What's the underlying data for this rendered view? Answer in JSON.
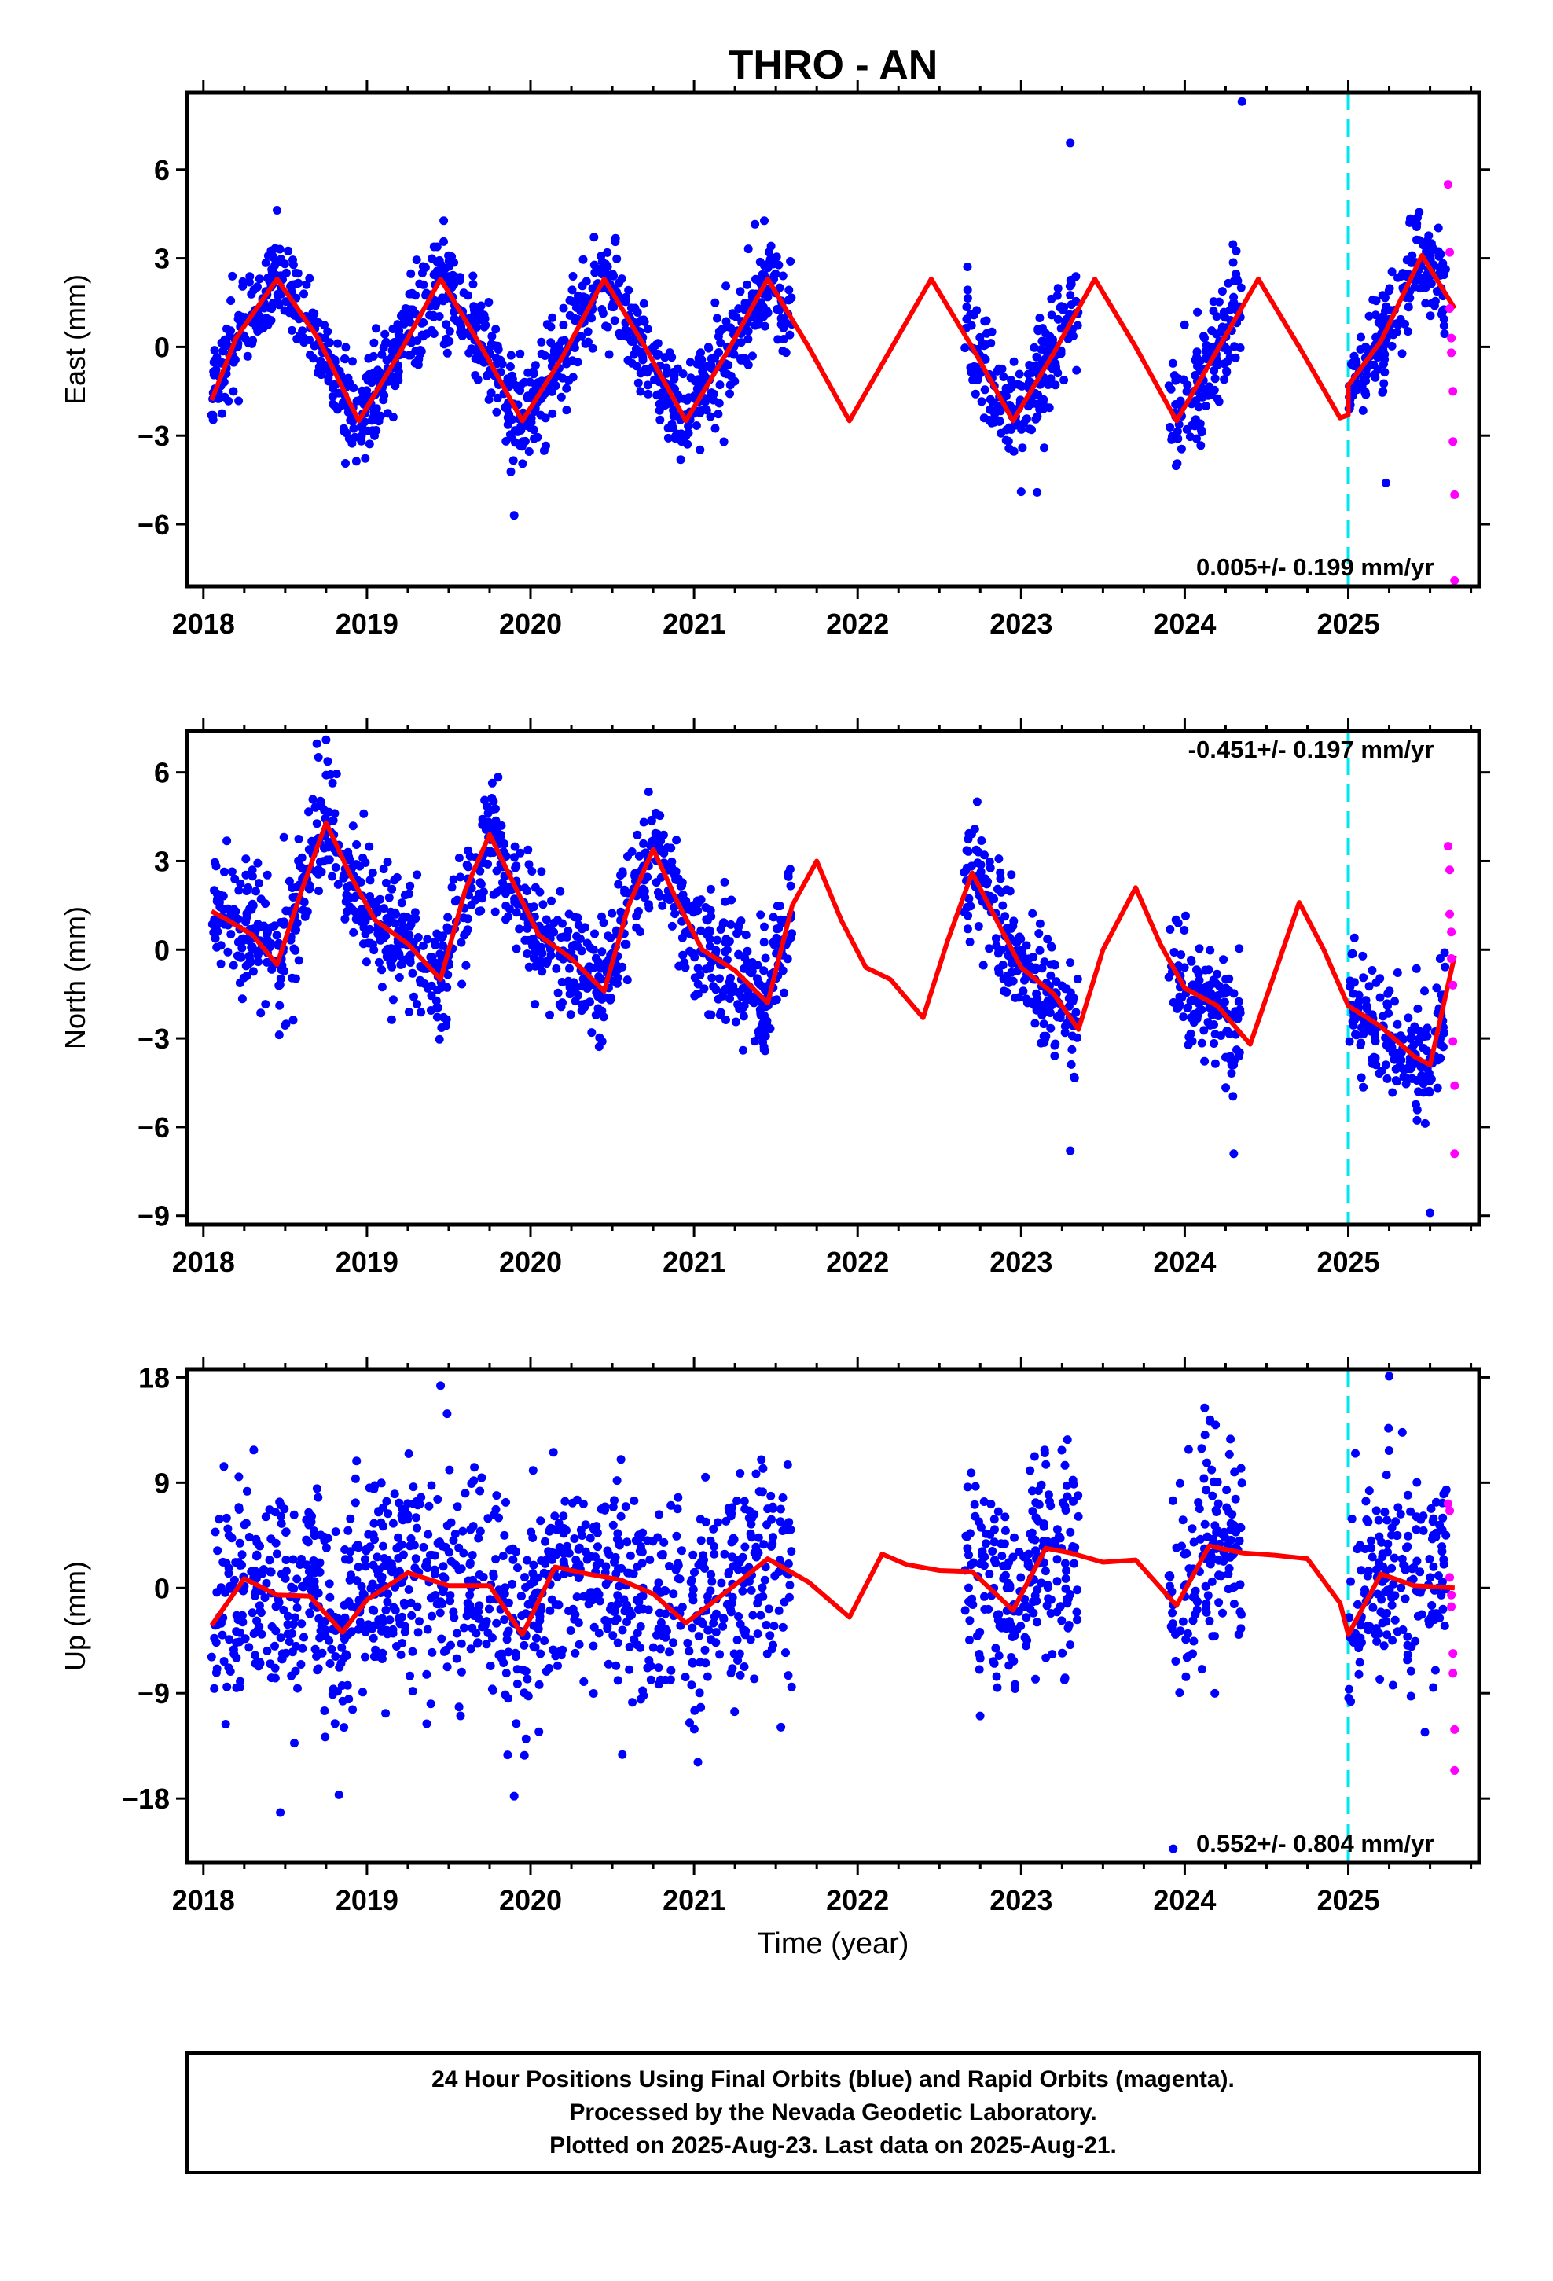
{
  "title": "THRO - AN",
  "x_axis_title": "Time (year)",
  "footer": {
    "line1": "24 Hour Positions Using Final Orbits (blue) and Rapid Orbits (magenta).",
    "line2": "Processed by the Nevada Geodetic Laboratory.",
    "line3": "Plotted on 2025-Aug-23. Last data on 2025-Aug-21."
  },
  "colors": {
    "final_orbits": "#0000ff",
    "rapid_orbits": "#ff00ff",
    "model": "#ff0000",
    "marker_line": "#00e5ee",
    "frame": "#000000"
  },
  "chart_data": [
    {
      "type": "scatter",
      "panel": "East",
      "ylabel": "East (mm)",
      "xlim": [
        2017.9,
        2025.8
      ],
      "ylim": [
        -8.1,
        8.6
      ],
      "yticks": [
        -6,
        -3,
        0,
        3,
        6
      ],
      "xticks": [
        2018,
        2019,
        2020,
        2021,
        2022,
        2023,
        2024,
        2025
      ],
      "rate_text": "0.005+/- 0.199 mm/yr",
      "rate_position": "bottom-right",
      "vline_x": 2025.0,
      "data_segments": [
        [
          2018.05,
          2021.6
        ],
        [
          2022.65,
          2023.35
        ],
        [
          2023.9,
          2024.35
        ],
        [
          2025.0,
          2025.6
        ]
      ],
      "rapid_x": [
        2025.6,
        2025.65
      ],
      "noise_sd": 0.85,
      "outlier_points": [
        {
          "x": 2019.9,
          "y": -5.7
        },
        {
          "x": 2024.35,
          "y": 8.3
        },
        {
          "x": 2023.3,
          "y": 6.9
        },
        {
          "x": 2025.23,
          "y": -4.6
        },
        {
          "x": 2023.0,
          "y": -4.9
        }
      ],
      "series": [
        {
          "kind": "model",
          "x": [
            2018.05,
            2018.2,
            2018.45,
            2018.7,
            2018.95,
            2019.2,
            2019.45,
            2019.7,
            2019.95,
            2020.2,
            2020.45,
            2020.7,
            2020.95,
            2021.2,
            2021.45,
            2021.7,
            2021.95,
            2022.2,
            2022.45,
            2022.7,
            2022.95,
            2023.2,
            2023.45,
            2023.7,
            2023.95,
            2024.2,
            2024.45,
            2024.7,
            2024.95,
            2025.0,
            2025.0,
            2025.2,
            2025.45,
            2025.65
          ],
          "y": [
            -1.8,
            0.3,
            2.3,
            0.3,
            -2.5,
            -0.2,
            2.3,
            0.0,
            -2.5,
            -0.3,
            2.3,
            0.0,
            -2.5,
            -0.2,
            2.3,
            0.0,
            -2.5,
            -0.1,
            2.3,
            0.0,
            -2.5,
            -0.2,
            2.3,
            0.0,
            -2.5,
            -0.1,
            2.3,
            0.0,
            -2.4,
            -2.3,
            -1.3,
            0.2,
            3.1,
            1.3
          ]
        },
        {
          "kind": "rapid",
          "x": [
            2025.61,
            2025.62,
            2025.62,
            2025.63,
            2025.63,
            2025.64,
            2025.64,
            2025.65,
            2025.65
          ],
          "y": [
            5.5,
            3.2,
            1.3,
            0.3,
            -0.2,
            -1.5,
            -3.2,
            -5.0,
            -7.9
          ]
        }
      ]
    },
    {
      "type": "scatter",
      "panel": "North",
      "ylabel": "North (mm)",
      "xlim": [
        2017.9,
        2025.8
      ],
      "ylim": [
        -9.3,
        7.4
      ],
      "yticks": [
        -9,
        -6,
        -3,
        0,
        3,
        6
      ],
      "xticks": [
        2018,
        2019,
        2020,
        2021,
        2022,
        2023,
        2024,
        2025
      ],
      "rate_text": "-0.451+/- 0.197 mm/yr",
      "rate_position": "top-right",
      "vline_x": 2025.0,
      "data_segments": [
        [
          2018.05,
          2021.6
        ],
        [
          2022.65,
          2023.35
        ],
        [
          2023.9,
          2024.35
        ],
        [
          2025.0,
          2025.6
        ]
      ],
      "rapid_x": [
        2025.6,
        2025.65
      ],
      "noise_sd": 1.0,
      "outlier_points": [
        {
          "x": 2018.75,
          "y": 7.1
        },
        {
          "x": 2025.5,
          "y": -8.9
        },
        {
          "x": 2023.3,
          "y": -6.8
        },
        {
          "x": 2024.3,
          "y": -6.9
        }
      ],
      "series": [
        {
          "kind": "model",
          "x": [
            2018.05,
            2018.15,
            2018.3,
            2018.45,
            2018.6,
            2018.75,
            2018.9,
            2019.05,
            2019.25,
            2019.45,
            2019.6,
            2019.75,
            2019.9,
            2020.05,
            2020.25,
            2020.45,
            2020.6,
            2020.75,
            2020.9,
            2021.05,
            2021.25,
            2021.45,
            2021.6,
            2021.75,
            2021.9,
            2022.05,
            2022.2,
            2022.4,
            2022.55,
            2022.7,
            2022.85,
            2023.0,
            2023.2,
            2023.35,
            2023.5,
            2023.7,
            2023.85,
            2024.0,
            2024.2,
            2024.4,
            2024.55,
            2024.7,
            2024.85,
            2025.0,
            2025.2,
            2025.4,
            2025.5,
            2025.65
          ],
          "y": [
            1.3,
            1.0,
            0.5,
            -0.5,
            2.0,
            4.3,
            2.5,
            1.0,
            0.2,
            -1.0,
            2.0,
            3.9,
            2.2,
            0.5,
            -0.3,
            -1.4,
            1.5,
            3.4,
            1.6,
            0.0,
            -0.7,
            -1.8,
            1.5,
            3.0,
            1.0,
            -0.6,
            -1.0,
            -2.3,
            0.3,
            2.6,
            1.0,
            -0.6,
            -1.5,
            -2.7,
            0.0,
            2.1,
            0.2,
            -1.3,
            -1.9,
            -3.2,
            -0.8,
            1.6,
            0.0,
            -1.9,
            -2.6,
            -3.6,
            -3.9,
            -0.2
          ]
        },
        {
          "kind": "rapid",
          "x": [
            2025.61,
            2025.62,
            2025.62,
            2025.63,
            2025.63,
            2025.64,
            2025.64,
            2025.65,
            2025.65
          ],
          "y": [
            3.5,
            2.7,
            1.2,
            0.6,
            -0.3,
            -1.2,
            -3.1,
            -4.6,
            -6.9
          ]
        }
      ]
    },
    {
      "type": "scatter",
      "panel": "Up",
      "ylabel": "Up (mm)",
      "xlim": [
        2017.9,
        2025.8
      ],
      "ylim": [
        -23.5,
        18.7
      ],
      "yticks": [
        -18,
        -9,
        0,
        9,
        18
      ],
      "xticks": [
        2018,
        2019,
        2020,
        2021,
        2022,
        2023,
        2024,
        2025
      ],
      "rate_text": "0.552+/- 0.804 mm/yr",
      "rate_position": "bottom-right",
      "vline_x": 2025.0,
      "data_segments": [
        [
          2018.05,
          2021.6
        ],
        [
          2022.65,
          2023.35
        ],
        [
          2023.9,
          2024.35
        ],
        [
          2025.0,
          2025.6
        ]
      ],
      "rapid_x": [
        2025.6,
        2025.65
      ],
      "noise_sd": 4.5,
      "outlier_points": [
        {
          "x": 2018.47,
          "y": -19.2
        },
        {
          "x": 2019.45,
          "y": 17.3
        },
        {
          "x": 2025.25,
          "y": 18.1
        },
        {
          "x": 2023.93,
          "y": -22.3
        },
        {
          "x": 2019.9,
          "y": -17.8
        }
      ],
      "series": [
        {
          "kind": "model",
          "x": [
            2018.05,
            2018.25,
            2018.45,
            2018.65,
            2018.85,
            2019.0,
            2019.25,
            2019.5,
            2019.75,
            2019.95,
            2020.15,
            2020.35,
            2020.55,
            2020.75,
            2020.95,
            2021.2,
            2021.45,
            2021.7,
            2021.95,
            2022.15,
            2022.3,
            2022.5,
            2022.7,
            2022.95,
            2023.15,
            2023.3,
            2023.5,
            2023.7,
            2023.95,
            2024.15,
            2024.35,
            2024.55,
            2024.75,
            2024.95,
            2025.0,
            2025.2,
            2025.4,
            2025.65
          ],
          "y": [
            -3.2,
            0.8,
            -0.6,
            -0.7,
            -3.8,
            -1.0,
            1.3,
            0.2,
            0.2,
            -4.0,
            1.8,
            1.2,
            0.7,
            -0.5,
            -3.0,
            -0.3,
            2.5,
            0.5,
            -2.5,
            2.9,
            2.0,
            1.5,
            1.4,
            -1.9,
            3.4,
            3.0,
            2.2,
            2.4,
            -1.5,
            3.6,
            3.0,
            2.8,
            2.5,
            -1.3,
            -4.0,
            1.2,
            0.2,
            0.0
          ]
        },
        {
          "kind": "rapid",
          "x": [
            2025.61,
            2025.62,
            2025.62,
            2025.63,
            2025.63,
            2025.64,
            2025.64,
            2025.65,
            2025.65
          ],
          "y": [
            7.2,
            6.6,
            0.9,
            -0.6,
            -1.6,
            -5.6,
            -7.3,
            -12.1,
            -15.6
          ]
        }
      ]
    }
  ]
}
